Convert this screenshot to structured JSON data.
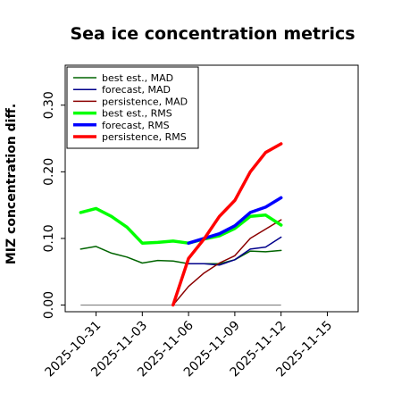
{
  "chart_data": {
    "type": "line",
    "title": "Sea ice concentration metrics",
    "ylabel": "MIZ concentration diff.",
    "xlabel": "",
    "ylim": [
      -0.01,
      0.36
    ],
    "xlim": [
      "2025-10-29",
      "2025-11-17"
    ],
    "x_ticks": [
      "2025-10-31",
      "2025-11-03",
      "2025-11-06",
      "2025-11-09",
      "2025-11-12",
      "2025-11-15"
    ],
    "x_tick_colors": [
      "#000000",
      "#000000",
      "#228b22",
      "#000000",
      "#000000",
      "#000000"
    ],
    "y_ticks": [
      0.0,
      0.1,
      0.2,
      0.3
    ],
    "y_tick_labels": [
      "0.00",
      "0.10",
      "0.20",
      "0.30"
    ],
    "grid": false,
    "legend_position": "top-left",
    "baseline": {
      "x": [
        "2025-10-30",
        "2025-11-12"
      ],
      "values": [
        0.0,
        0.0
      ],
      "color": "#808080"
    },
    "series": [
      {
        "name": "best est., MAD",
        "color": "#006400",
        "width": 1.5,
        "x": [
          "2025-10-30",
          "2025-10-31",
          "2025-11-01",
          "2025-11-02",
          "2025-11-03",
          "2025-11-04",
          "2025-11-05",
          "2025-11-06",
          "2025-11-07",
          "2025-11-08",
          "2025-11-09",
          "2025-11-10",
          "2025-11-11",
          "2025-11-12"
        ],
        "values": [
          0.084,
          0.088,
          0.078,
          0.072,
          0.063,
          0.067,
          0.066,
          0.062,
          0.062,
          0.062,
          0.068,
          0.081,
          0.08,
          0.082
        ]
      },
      {
        "name": "forecast,  MAD",
        "color": "#00008b",
        "width": 1.5,
        "x": [
          "2025-11-06",
          "2025-11-07",
          "2025-11-08",
          "2025-11-09",
          "2025-11-10",
          "2025-11-11",
          "2025-11-12"
        ],
        "values": [
          0.062,
          0.062,
          0.06,
          0.068,
          0.084,
          0.087,
          0.102
        ]
      },
      {
        "name": "persistence, MAD",
        "color": "#8b0000",
        "width": 1.5,
        "x": [
          "2025-11-05",
          "2025-11-06",
          "2025-11-07",
          "2025-11-08",
          "2025-11-09",
          "2025-11-10",
          "2025-11-11",
          "2025-11-12"
        ],
        "values": [
          0.0,
          0.028,
          0.048,
          0.063,
          0.074,
          0.1,
          0.114,
          0.128
        ]
      },
      {
        "name": "best est., RMS",
        "color": "#00ff00",
        "width": 3.5,
        "x": [
          "2025-10-30",
          "2025-10-31",
          "2025-11-01",
          "2025-11-02",
          "2025-11-03",
          "2025-11-04",
          "2025-11-05",
          "2025-11-06",
          "2025-11-07",
          "2025-11-08",
          "2025-11-09",
          "2025-11-10",
          "2025-11-11",
          "2025-11-12"
        ],
        "values": [
          0.139,
          0.145,
          0.133,
          0.117,
          0.093,
          0.094,
          0.096,
          0.093,
          0.099,
          0.104,
          0.115,
          0.133,
          0.135,
          0.12
        ]
      },
      {
        "name": "forecast,  RMS",
        "color": "#0000ff",
        "width": 3.5,
        "x": [
          "2025-11-06",
          "2025-11-07",
          "2025-11-08",
          "2025-11-09",
          "2025-11-10",
          "2025-11-11",
          "2025-11-12"
        ],
        "values": [
          0.093,
          0.1,
          0.107,
          0.119,
          0.139,
          0.147,
          0.161
        ]
      },
      {
        "name": "persistence, RMS",
        "color": "#ff0000",
        "width": 3.5,
        "x": [
          "2025-11-05",
          "2025-11-06",
          "2025-11-07",
          "2025-11-08",
          "2025-11-09",
          "2025-11-10",
          "2025-11-11",
          "2025-11-12"
        ],
        "values": [
          0.0,
          0.07,
          0.099,
          0.133,
          0.157,
          0.2,
          0.229,
          0.242
        ]
      }
    ]
  }
}
